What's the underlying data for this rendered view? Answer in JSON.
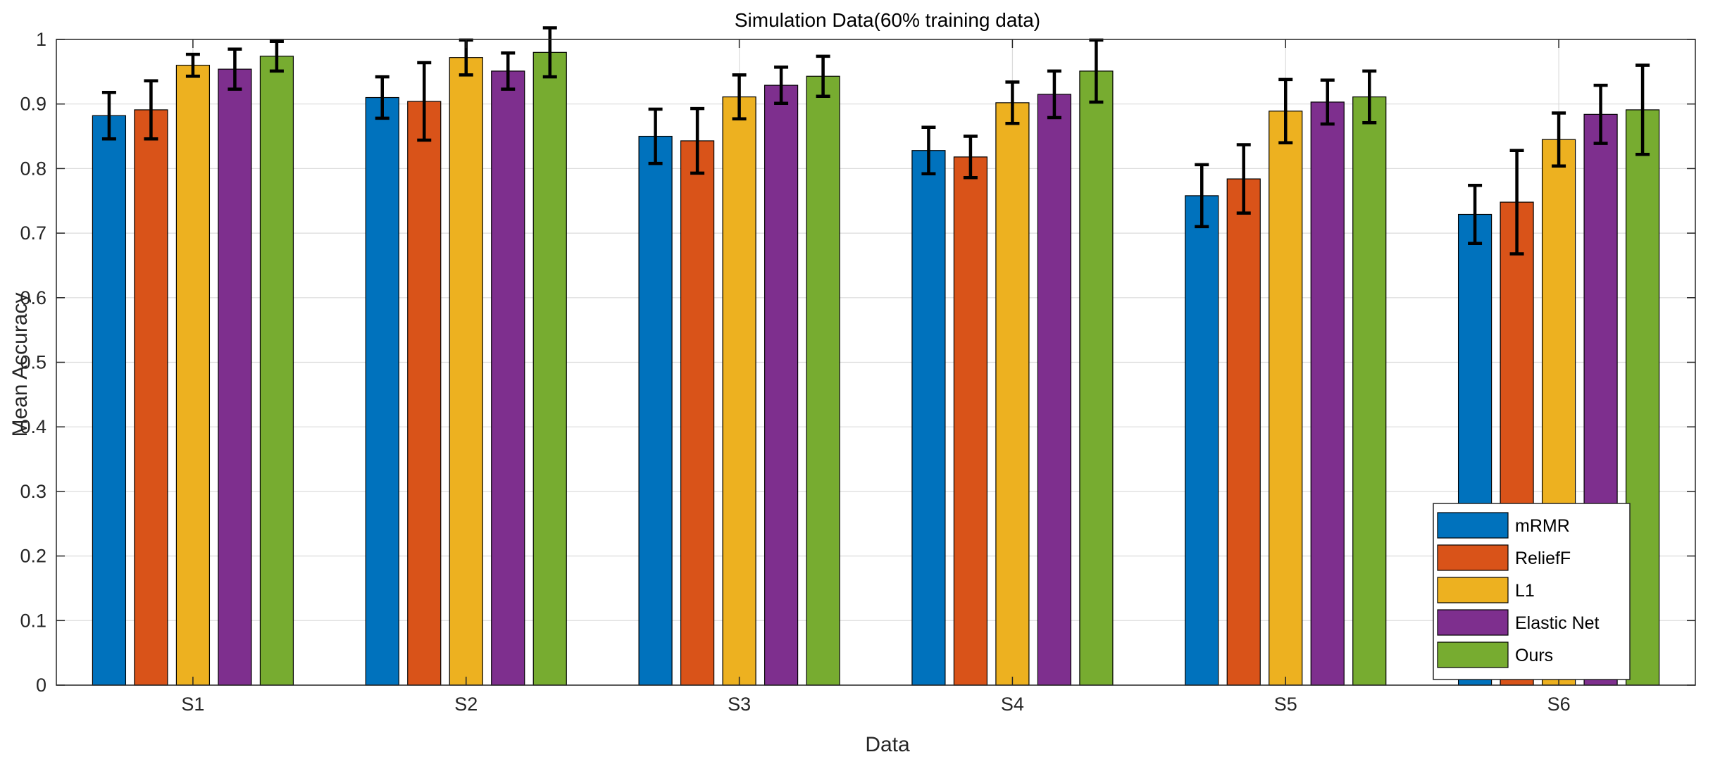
{
  "chart_data": {
    "type": "bar",
    "title": "Simulation Data(60% training data)",
    "xlabel": "Data",
    "ylabel": "Mean Accuracy",
    "ylim": [
      0,
      1
    ],
    "yticks": [
      "0",
      "0.1",
      "0.2",
      "0.3",
      "0.4",
      "0.5",
      "0.6",
      "0.7",
      "0.8",
      "0.9",
      "1"
    ],
    "grid": true,
    "legend_position": "bottom-right",
    "categories": [
      "S1",
      "S2",
      "S3",
      "S4",
      "S5",
      "S6"
    ],
    "series": [
      {
        "name": "mRMR",
        "color": "#0072BD",
        "values": [
          0.882,
          0.91,
          0.85,
          0.828,
          0.758,
          0.729
        ],
        "errors": [
          0.036,
          0.032,
          0.042,
          0.036,
          0.048,
          0.045
        ]
      },
      {
        "name": "ReliefF",
        "color": "#D95319",
        "values": [
          0.891,
          0.904,
          0.843,
          0.818,
          0.784,
          0.748
        ],
        "errors": [
          0.045,
          0.06,
          0.05,
          0.032,
          0.053,
          0.08
        ]
      },
      {
        "name": "L1",
        "color": "#EDB120",
        "values": [
          0.96,
          0.972,
          0.911,
          0.902,
          0.889,
          0.845
        ],
        "errors": [
          0.017,
          0.027,
          0.034,
          0.032,
          0.049,
          0.041
        ]
      },
      {
        "name": "Elastic Net",
        "color": "#7E2F8E",
        "values": [
          0.954,
          0.951,
          0.929,
          0.915,
          0.903,
          0.884
        ],
        "errors": [
          0.031,
          0.028,
          0.028,
          0.036,
          0.034,
          0.045
        ]
      },
      {
        "name": "Ours",
        "color": "#77AC30",
        "values": [
          0.974,
          0.98,
          0.943,
          0.951,
          0.911,
          0.891
        ],
        "errors": [
          0.023,
          0.038,
          0.031,
          0.048,
          0.04,
          0.069
        ]
      }
    ]
  }
}
